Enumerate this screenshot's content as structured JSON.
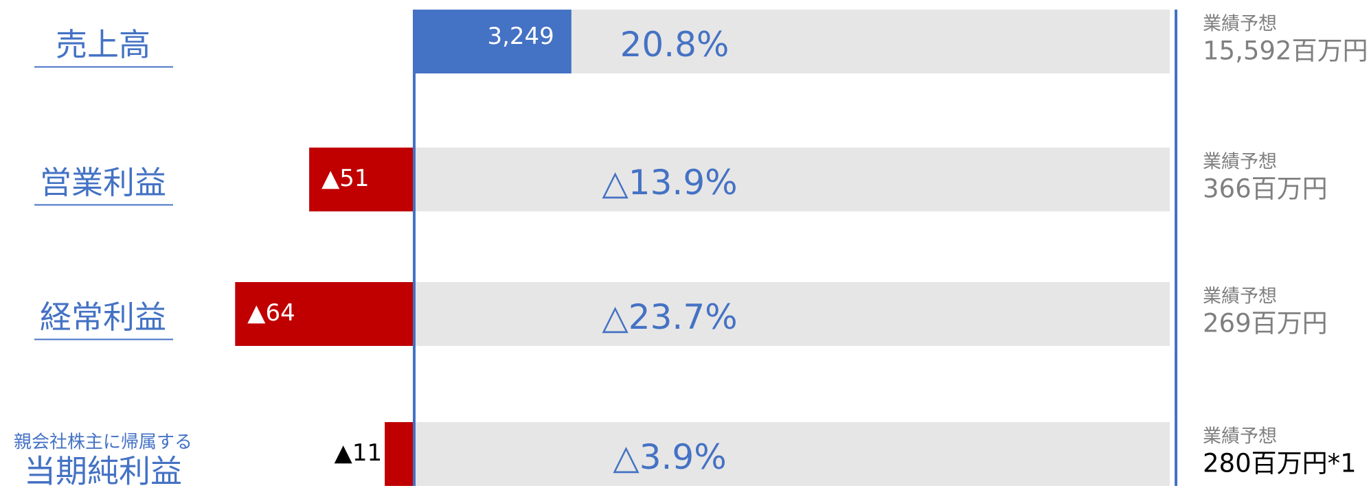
{
  "chart_data": {
    "type": "progress",
    "categories": [
      "売上高",
      "営業利益",
      "経常利益",
      "当期純利益"
    ],
    "subcaption": "親会社株主に帰属する",
    "values": [
      3249,
      -51,
      -64,
      -11
    ],
    "value_labels": [
      "3,249",
      "▲51",
      "▲64",
      "▲11"
    ],
    "ratios": [
      20.8,
      -13.9,
      -23.7,
      -3.9
    ],
    "ratio_labels": [
      "20.8%",
      "△13.9%",
      "△23.7%",
      "△3.9%"
    ],
    "forecast_title": "業績予想",
    "forecasts": [
      15592,
      366,
      269,
      280
    ],
    "forecast_labels": [
      "15,592百万円",
      "366百万円",
      "269百万円",
      "280百万円*1"
    ],
    "positive_color": "#4472c4",
    "negative_color": "#c00000",
    "track_color": "#e7e6e6"
  }
}
